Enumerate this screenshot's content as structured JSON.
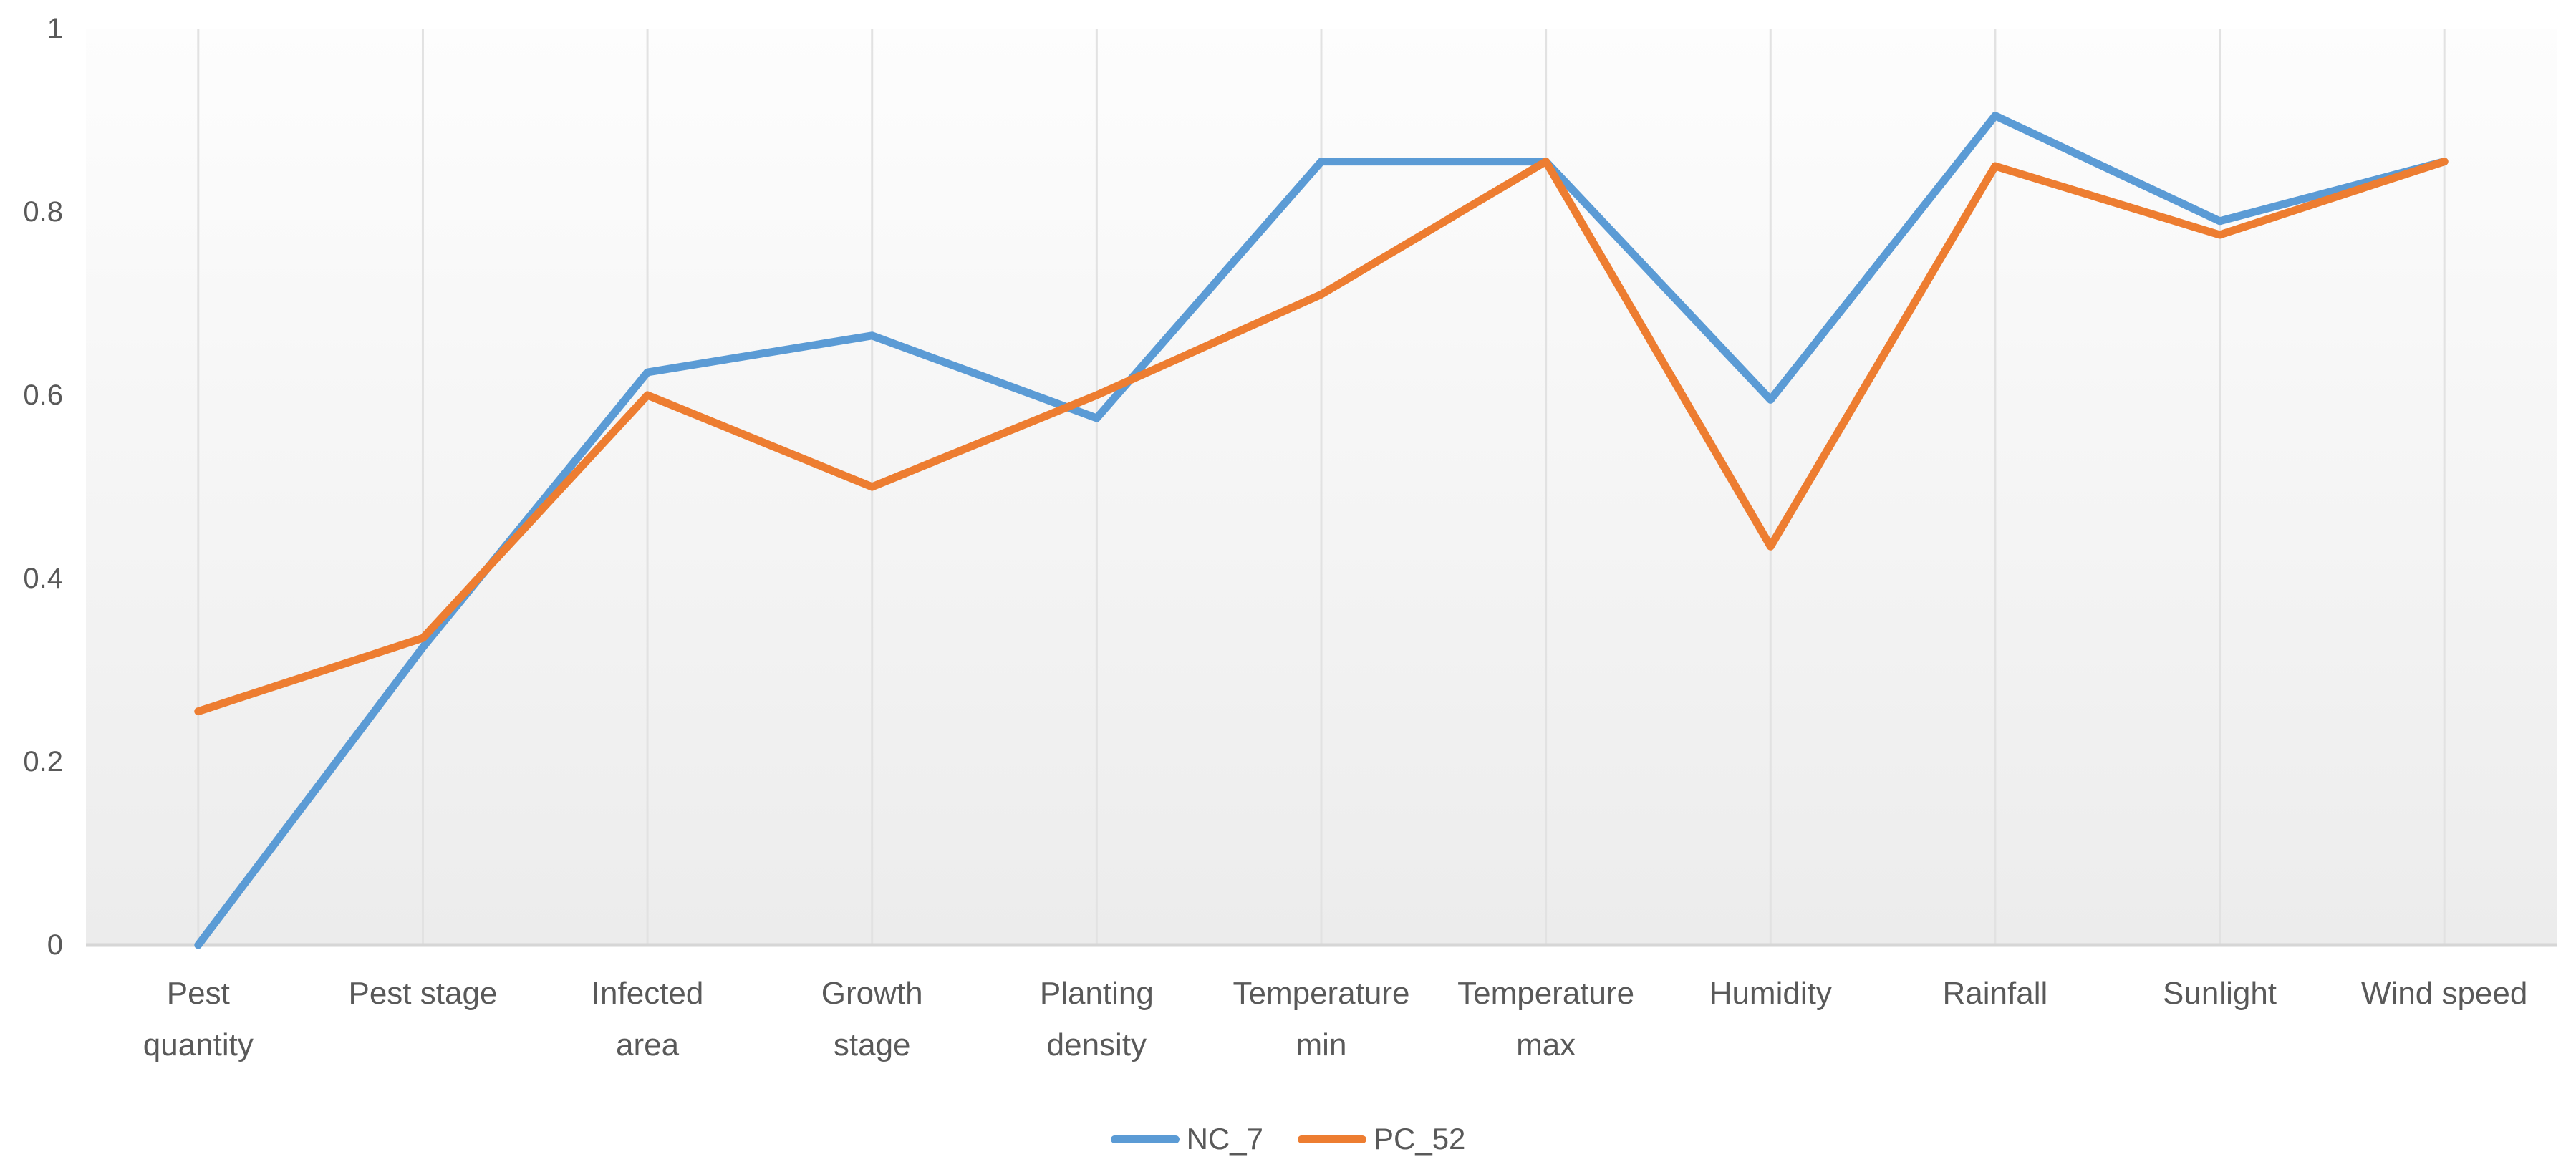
{
  "chart_data": {
    "type": "line",
    "title": "",
    "xlabel": "",
    "ylabel": "",
    "categories": [
      "Pest quantity",
      "Pest stage",
      "Infected area",
      "Growth stage",
      "Planting density",
      "Temperature min",
      "Temperature max",
      "Humidity",
      "Rainfall",
      "Sunlight",
      "Wind speed"
    ],
    "category_labels": [
      "Pest\nquantity",
      "Pest stage",
      "Infected\narea",
      "Growth\nstage",
      "Planting\ndensity",
      "Temperature\nmin",
      "Temperature\nmax",
      "Humidity",
      "Rainfall",
      "Sunlight",
      "Wind speed"
    ],
    "series": [
      {
        "name": "NC_7",
        "color": "#5B9BD5",
        "values": [
          0.0,
          0.325,
          0.625,
          0.665,
          0.575,
          0.855,
          0.855,
          0.595,
          0.905,
          0.79,
          0.855
        ]
      },
      {
        "name": "PC_52",
        "color": "#ED7D31",
        "values": [
          0.255,
          0.335,
          0.6,
          0.5,
          0.6,
          0.71,
          0.855,
          0.435,
          0.85,
          0.775,
          0.855
        ]
      }
    ],
    "ylim": [
      0,
      1
    ],
    "yticks": [
      0,
      0.2,
      0.4,
      0.6,
      0.8,
      1
    ],
    "ytick_labels": [
      "0",
      "0.2",
      "0.4",
      "0.6",
      "0.8",
      "1"
    ],
    "grid": "vertical category gridlines only",
    "legend_position": "bottom-center",
    "colors": {
      "gridline": "#e2e2e2",
      "axis_line": "#d6d6d6",
      "tick_text": "#595959",
      "plot_bg_top": "#fdfdfd",
      "plot_bg_bottom": "#ececec"
    }
  }
}
